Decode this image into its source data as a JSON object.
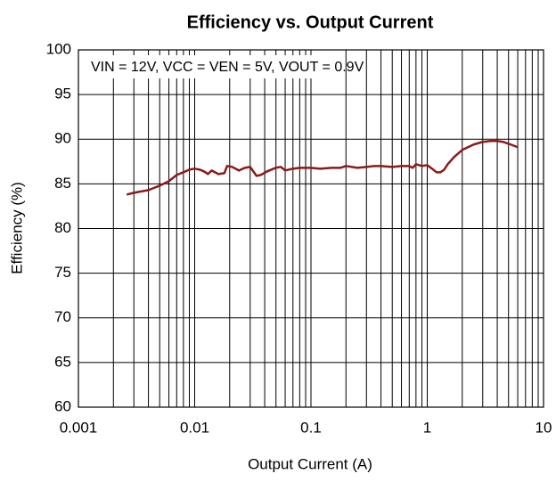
{
  "chart_data": {
    "type": "line",
    "title": "Efficiency vs. Output Current",
    "xlabel": "Output Current (A)",
    "ylabel": "Efficiency (%)",
    "annotation": "VIN = 12V, VCC = VEN = 5V, VOUT = 0.9V",
    "xscale": "log",
    "grid": true,
    "xlim": [
      0.001,
      10
    ],
    "ylim": [
      60,
      100
    ],
    "xticks": [
      0.001,
      0.01,
      0.1,
      1,
      10
    ],
    "xminor_ticks": [
      0.002,
      0.003,
      0.004,
      0.005,
      0.006,
      0.007,
      0.008,
      0.009,
      0.02,
      0.03,
      0.04,
      0.05,
      0.06,
      0.07,
      0.08,
      0.09,
      0.2,
      0.3,
      0.4,
      0.5,
      0.6,
      0.7,
      0.8,
      0.9,
      2,
      3,
      4,
      5,
      6,
      7,
      8,
      9
    ],
    "yticks": [
      60,
      65,
      70,
      75,
      80,
      85,
      90,
      95,
      100
    ],
    "x": [
      0.0026,
      0.003,
      0.004,
      0.005,
      0.006,
      0.007,
      0.008,
      0.009,
      0.01,
      0.011,
      0.012,
      0.013,
      0.014,
      0.016,
      0.018,
      0.019,
      0.021,
      0.024,
      0.027,
      0.03,
      0.034,
      0.037,
      0.042,
      0.05,
      0.055,
      0.06,
      0.07,
      0.08,
      0.09,
      0.1,
      0.12,
      0.15,
      0.18,
      0.2,
      0.25,
      0.3,
      0.35,
      0.4,
      0.5,
      0.6,
      0.7,
      0.75,
      0.8,
      0.9,
      1.0,
      1.1,
      1.2,
      1.3,
      1.4,
      1.5,
      1.7,
      2.0,
      2.5,
      3.0,
      3.5,
      4.0,
      4.5,
      5.0,
      6.0
    ],
    "series": [
      {
        "name": "Efficiency",
        "color": "#8b1a1a",
        "values": [
          83.8,
          84.0,
          84.3,
          84.8,
          85.3,
          86.0,
          86.3,
          86.6,
          86.7,
          86.6,
          86.4,
          86.1,
          86.5,
          86.1,
          86.2,
          87.0,
          86.9,
          86.5,
          86.8,
          86.9,
          85.9,
          86.0,
          86.4,
          86.8,
          86.9,
          86.5,
          86.7,
          86.8,
          86.8,
          86.8,
          86.7,
          86.8,
          86.8,
          87.0,
          86.8,
          86.9,
          87.0,
          87.0,
          86.9,
          87.0,
          87.0,
          86.8,
          87.2,
          87.0,
          87.1,
          86.7,
          86.3,
          86.3,
          86.6,
          87.2,
          88.0,
          88.8,
          89.4,
          89.7,
          89.8,
          89.8,
          89.7,
          89.5,
          89.1
        ]
      }
    ]
  }
}
